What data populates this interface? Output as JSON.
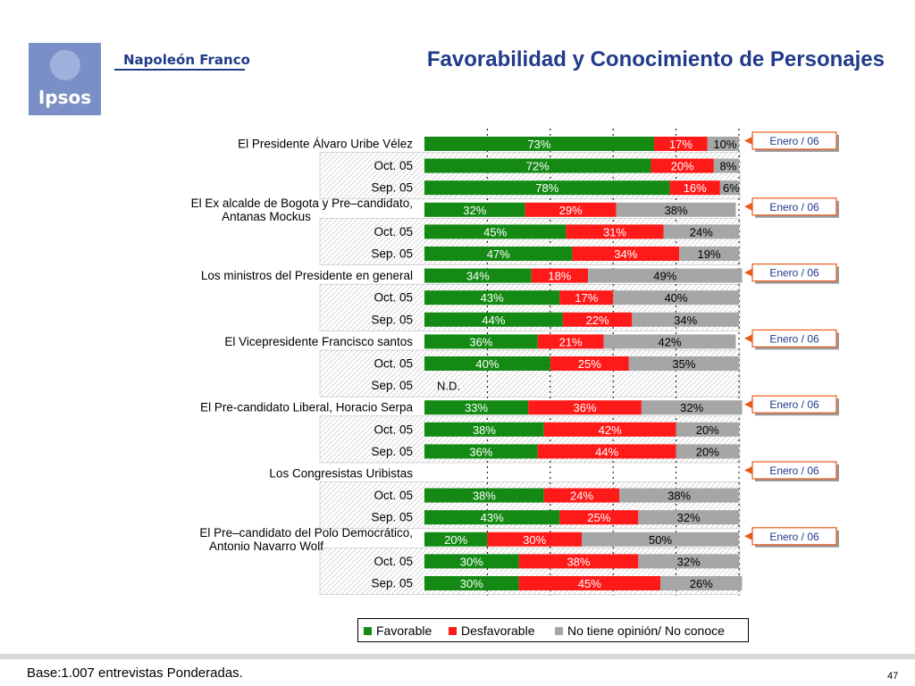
{
  "header": {
    "logo_text": "Ipsos",
    "company": "Napoleón Franco",
    "title": "Favorabilidad y Conocimiento de Personajes"
  },
  "colors": {
    "favorable": "#148a14",
    "desfavorable": "#ff1a1a",
    "no_opinion": "#a6a6a6"
  },
  "chart_data": {
    "type": "bar",
    "orientation": "horizontal",
    "stacked": true,
    "xlim": [
      0,
      100
    ],
    "series_names": [
      "Favorable",
      "Desfavorable",
      "No tiene opinión/ No conoce"
    ],
    "badge": "Enero / 06",
    "groups": [
      {
        "name": "El Presidente Álvaro Uribe Vélez",
        "rows": [
          {
            "label": "",
            "values": [
              73,
              17,
              10
            ],
            "labels": [
              "73%",
              "17%",
              "10%"
            ]
          },
          {
            "label": "Oct. 05",
            "values": [
              72,
              20,
              8
            ],
            "labels": [
              "72%",
              "20%",
              "8%"
            ]
          },
          {
            "label": "Sep. 05",
            "values": [
              78,
              16,
              6
            ],
            "labels": [
              "78%",
              "16%",
              "6%"
            ]
          }
        ]
      },
      {
        "name": "El Ex alcalde de Bogota y Pre–candidato, Antanas Mockus",
        "rows": [
          {
            "label": "",
            "values": [
              32,
              29,
              38
            ],
            "labels": [
              "32%",
              "29%",
              "38%"
            ]
          },
          {
            "label": "Oct. 05",
            "values": [
              45,
              31,
              24
            ],
            "labels": [
              "45%",
              "31%",
              "24%"
            ]
          },
          {
            "label": "Sep. 05",
            "values": [
              47,
              34,
              19
            ],
            "labels": [
              "47%",
              "34%",
              "19%"
            ]
          }
        ]
      },
      {
        "name": "Los ministros del Presidente en general",
        "rows": [
          {
            "label": "",
            "values": [
              34,
              18,
              49
            ],
            "labels": [
              "34%",
              "18%",
              "49%"
            ]
          },
          {
            "label": "Oct. 05",
            "values": [
              43,
              17,
              40
            ],
            "labels": [
              "43%",
              "17%",
              "40%"
            ]
          },
          {
            "label": "Sep. 05",
            "values": [
              44,
              22,
              34
            ],
            "labels": [
              "44%",
              "22%",
              "34%"
            ]
          }
        ]
      },
      {
        "name": "El Vicepresidente Francisco santos",
        "rows": [
          {
            "label": "",
            "values": [
              36,
              21,
              42
            ],
            "labels": [
              "36%",
              "21%",
              "42%"
            ]
          },
          {
            "label": "Oct. 05",
            "values": [
              40,
              25,
              35
            ],
            "labels": [
              "40%",
              "25%",
              "35%"
            ]
          },
          {
            "label": "Sep. 05",
            "values": null,
            "na_text": "N.D."
          }
        ]
      },
      {
        "name": "El Pre-candidato Liberal, Horacio Serpa",
        "rows": [
          {
            "label": "",
            "values": [
              33,
              36,
              32
            ],
            "labels": [
              "33%",
              "36%",
              "32%"
            ]
          },
          {
            "label": "Oct. 05",
            "values": [
              38,
              42,
              20
            ],
            "labels": [
              "38%",
              "42%",
              "20%"
            ]
          },
          {
            "label": "Sep. 05",
            "values": [
              36,
              44,
              20
            ],
            "labels": [
              "36%",
              "44%",
              "20%"
            ]
          }
        ]
      },
      {
        "name": "Los Congresistas Uribistas",
        "rows": [
          {
            "label": "",
            "values": null,
            "na_text": ""
          },
          {
            "label": "Oct. 05",
            "values": [
              38,
              24,
              38
            ],
            "labels": [
              "38%",
              "24%",
              "38%"
            ]
          },
          {
            "label": "Sep. 05",
            "values": [
              43,
              25,
              32
            ],
            "labels": [
              "43%",
              "25%",
              "32%"
            ]
          }
        ]
      },
      {
        "name": "El Pre–candidato del Polo Democrático, Antonio Navarro Wolf",
        "rows": [
          {
            "label": "",
            "values": [
              20,
              30,
              50
            ],
            "labels": [
              "20%",
              "30%",
              "50%"
            ]
          },
          {
            "label": "Oct. 05",
            "values": [
              30,
              38,
              32
            ],
            "labels": [
              "30%",
              "38%",
              "32%"
            ]
          },
          {
            "label": "Sep. 05",
            "values": [
              30,
              45,
              26
            ],
            "labels": [
              "30%",
              "45%",
              "26%"
            ]
          }
        ]
      }
    ]
  },
  "legend": {
    "favorable": "Favorable",
    "desfavorable": "Desfavorable",
    "no_opinion": "No tiene opinión/ No conoce"
  },
  "footer": {
    "base": "Base:1.007 entrevistas Ponderadas.",
    "page": "47"
  }
}
